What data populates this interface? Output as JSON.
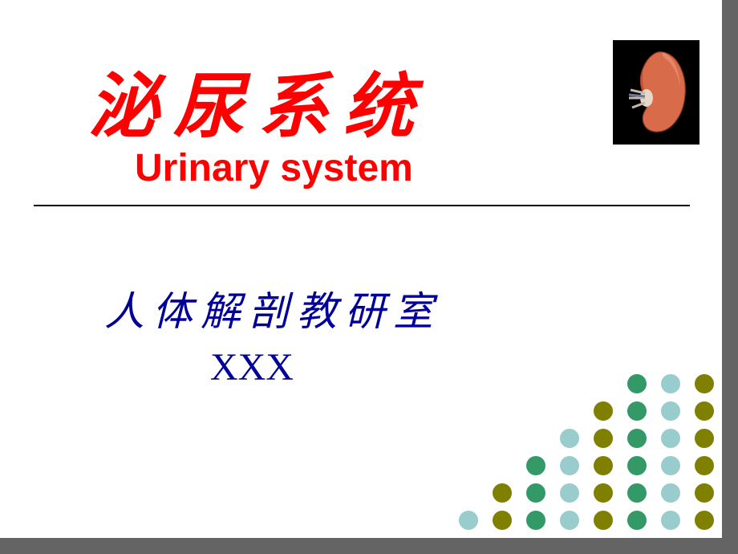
{
  "title_cn": "泌尿系统",
  "title_en": "Urinary system",
  "subtitle_cn": "人体解剖教研室",
  "author": "XXX",
  "colors": {
    "title": "#ff0000",
    "subtitle": "#000099",
    "background": "#ffffff",
    "divider": "#000000",
    "kidney_bg": "#000000",
    "kidney_fill": "#d86b4a",
    "kidney_shade": "#b34a2e",
    "kidney_hilum": "#e8d8c8",
    "frame_shadow": "#646464"
  },
  "typography": {
    "title_cn_fontsize": 88,
    "title_en_fontsize": 48,
    "subtitle_cn_fontsize": 50,
    "author_fontsize": 48
  },
  "dot_grid": {
    "dot_size": 24,
    "row_lengths": [
      3,
      4,
      5,
      6,
      7,
      8
    ],
    "row_colors": [
      [
        "#339966",
        "#99cccc",
        "#808000"
      ],
      [
        "#808000",
        "#339966",
        "#99cccc",
        "#808000"
      ],
      [
        "#99cccc",
        "#808000",
        "#339966",
        "#99cccc",
        "#808000"
      ],
      [
        "#339966",
        "#99cccc",
        "#808000",
        "#339966",
        "#99cccc",
        "#808000"
      ],
      [
        "#808000",
        "#339966",
        "#99cccc",
        "#808000",
        "#339966",
        "#99cccc",
        "#808000"
      ],
      [
        "#99cccc",
        "#808000",
        "#339966",
        "#99cccc",
        "#808000",
        "#339966",
        "#99cccc",
        "#808000"
      ]
    ]
  }
}
